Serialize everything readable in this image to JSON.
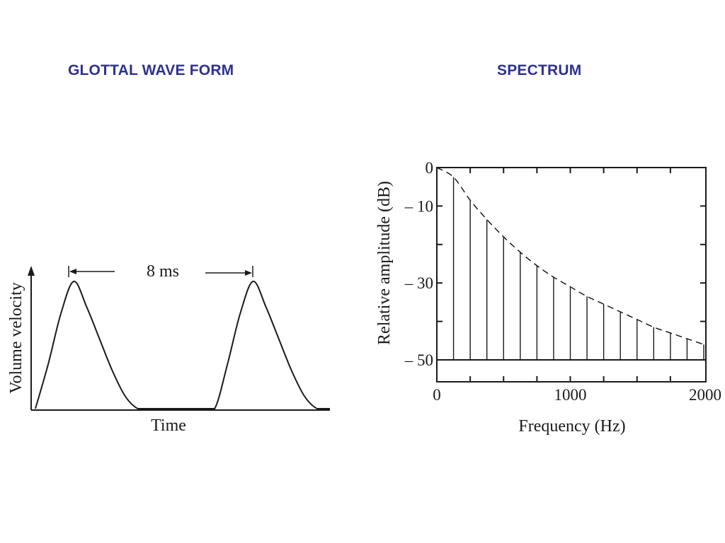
{
  "titles": {
    "left": "GLOTTAL WAVE FORM",
    "right": "SPECTRUM"
  },
  "colors": {
    "title": "#2e3192",
    "ink": "#1a1a1a"
  },
  "chart_data": [
    {
      "type": "line",
      "title": "",
      "xlabel": "Time",
      "ylabel": "Volume velocity",
      "annotations": [
        "8 ms"
      ],
      "period_ms": 8,
      "grid": false,
      "series": [
        {
          "x": [
            0,
            0.5,
            1,
            1.5,
            2,
            2.5,
            3,
            3.5,
            4,
            4.5,
            5,
            5.5,
            6,
            6.5,
            7,
            7.5,
            8,
            8.5,
            9,
            9.5,
            10,
            10.5,
            11,
            11.5
          ],
          "values": [
            0,
            0.35,
            0.75,
            1.0,
            0.8,
            0.55,
            0.3,
            0.1,
            0,
            0,
            0,
            0,
            0,
            0,
            0,
            0.35,
            0.75,
            1.0,
            0.8,
            0.55,
            0.3,
            0.1,
            0,
            0
          ]
        }
      ]
    },
    {
      "type": "bar",
      "title": "",
      "xlabel": "Frequency (Hz)",
      "ylabel": "Relative amplitude (dB)",
      "xlim": [
        0,
        2000
      ],
      "ylim": [
        -50,
        0
      ],
      "xticks": [
        "0",
        "1000",
        "2000"
      ],
      "yticks": [
        "0",
        "– 10",
        "– 30",
        "– 50"
      ],
      "ytick_values": [
        0,
        -10,
        -30,
        -50
      ],
      "grid": false,
      "harmonics_hz": [
        125,
        250,
        375,
        500,
        625,
        750,
        875,
        1000,
        1125,
        1250,
        1375,
        1500,
        1625,
        1750,
        1875,
        2000
      ],
      "amplitudes_db": [
        -2.5,
        -8.5,
        -13.5,
        -18,
        -22,
        -25.5,
        -28.5,
        -31,
        -33.5,
        -35.5,
        -37.5,
        -39.5,
        -41.5,
        -43,
        -44.5,
        -46
      ],
      "envelope": {
        "x": [
          0,
          125,
          250,
          375,
          500,
          625,
          750,
          875,
          1000,
          1125,
          1250,
          1375,
          1500,
          1625,
          1750,
          1875,
          2000
        ],
        "values": [
          0,
          -2.5,
          -8.5,
          -13.5,
          -18,
          -22,
          -25.5,
          -28.5,
          -31,
          -33.5,
          -35.5,
          -37.5,
          -39.5,
          -41.5,
          -43,
          -44.5,
          -46
        ]
      }
    }
  ]
}
